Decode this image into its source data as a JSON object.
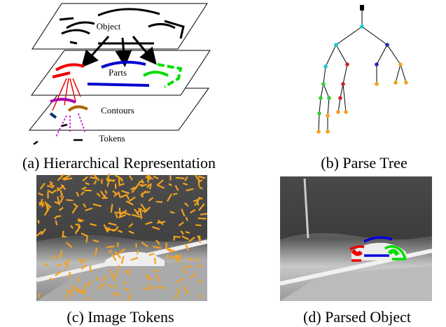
{
  "panel_a": {
    "layers": [
      "Object",
      "Parts",
      "Contours",
      "Tokens"
    ],
    "caption": "(a) Hierarchical Representation"
  },
  "panel_b": {
    "caption": "(b) Parse Tree"
  },
  "panel_c": {
    "caption": "(c) Image Tokens"
  },
  "panel_d": {
    "caption": "(d) Parsed Object"
  }
}
